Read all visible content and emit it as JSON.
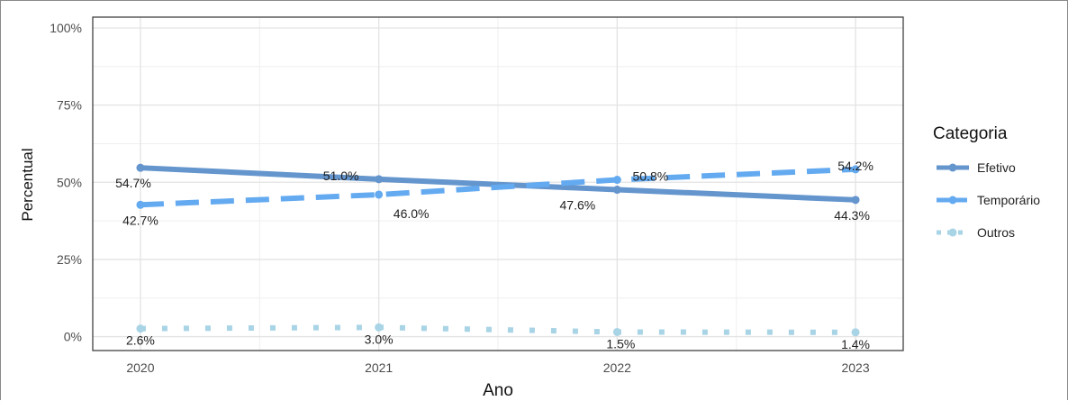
{
  "chart_data": {
    "type": "line",
    "title": "",
    "xlabel": "Ano",
    "ylabel": "Percentual",
    "ylim": [
      0,
      100
    ],
    "x": [
      2020,
      2021,
      2022,
      2023
    ],
    "x_tick_labels": [
      "2020",
      "2021",
      "2022",
      "2023"
    ],
    "y_ticks": [
      0,
      25,
      50,
      75,
      100
    ],
    "y_tick_labels": [
      "0%",
      "25%",
      "50%",
      "75%",
      "100%"
    ],
    "grid": true,
    "legend": {
      "title": "Categoria",
      "position": "right"
    },
    "series": [
      {
        "name": "Efetivo",
        "values": [
          54.7,
          51.0,
          47.6,
          44.3
        ],
        "labels": [
          "54.7%",
          "51.0%",
          "47.6%",
          "44.3%"
        ],
        "color": "#6495cd",
        "line_style": "solid"
      },
      {
        "name": "Temporário",
        "values": [
          42.7,
          46.0,
          50.8,
          54.2
        ],
        "labels": [
          "42.7%",
          "46.0%",
          "50.8%",
          "54.2%"
        ],
        "color": "#64aaf0",
        "line_style": "dashed"
      },
      {
        "name": "Outros",
        "values": [
          2.6,
          3.0,
          1.5,
          1.4
        ],
        "labels": [
          "2.6%",
          "3.0%",
          "1.5%",
          "1.4%"
        ],
        "color": "#a8d4e6",
        "line_style": "dotted"
      }
    ]
  }
}
